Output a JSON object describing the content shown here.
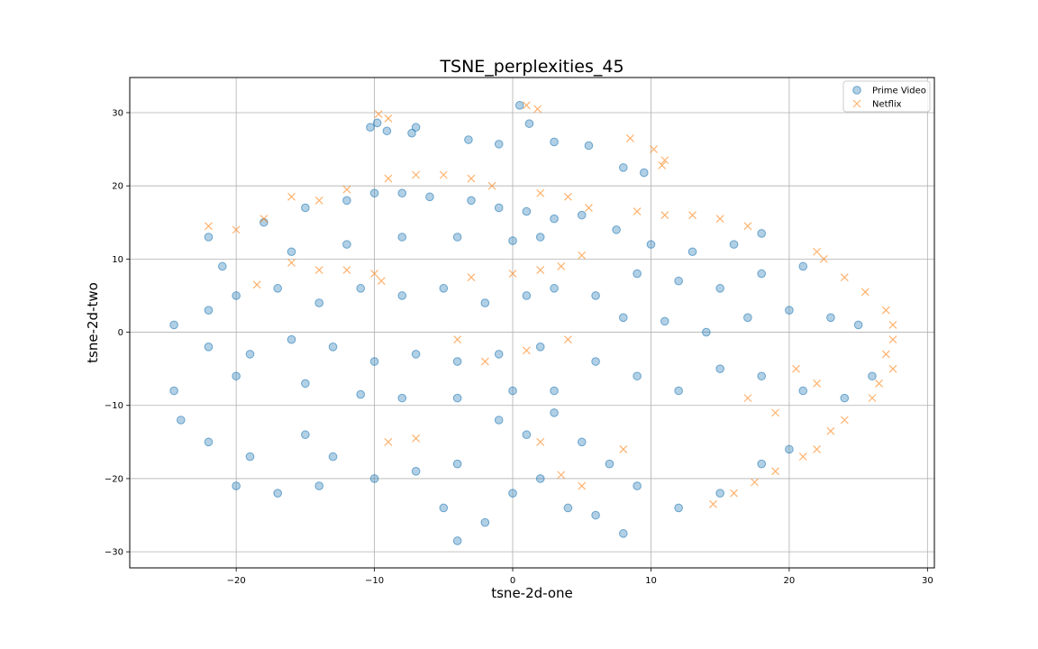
{
  "chart_data": {
    "type": "scatter",
    "title": "TSNE_perplexities_45",
    "xlabel": "tsne-2d-one",
    "ylabel": "tsne-2d-two",
    "xlim": [
      -27.7,
      30.5
    ],
    "ylim": [
      -32.2,
      34.8
    ],
    "xticks": [
      -20,
      -10,
      0,
      10,
      20,
      30
    ],
    "yticks": [
      -30,
      -20,
      -10,
      0,
      10,
      20,
      30
    ],
    "grid": true,
    "legend_position": "top-right",
    "series": [
      {
        "name": "Prime Video",
        "marker": "circle",
        "color": "#1f77b4",
        "alpha": 0.35,
        "points": [
          [
            -10.3,
            28.0
          ],
          [
            -9.8,
            28.6
          ],
          [
            -9.1,
            27.5
          ],
          [
            -7.3,
            27.2
          ],
          [
            -7.0,
            28.0
          ],
          [
            -3.2,
            26.3
          ],
          [
            -1.0,
            25.7
          ],
          [
            0.5,
            31.0
          ],
          [
            1.2,
            28.5
          ],
          [
            3.0,
            26.0
          ],
          [
            5.5,
            25.5
          ],
          [
            8.0,
            22.5
          ],
          [
            9.5,
            21.8
          ],
          [
            -22.0,
            13.0
          ],
          [
            -18.0,
            15.0
          ],
          [
            -15.0,
            17.0
          ],
          [
            -12.0,
            18.0
          ],
          [
            -10.0,
            19.0
          ],
          [
            -8.0,
            19.0
          ],
          [
            -6.0,
            18.5
          ],
          [
            -3.0,
            18.0
          ],
          [
            -1.0,
            17.0
          ],
          [
            1.0,
            16.5
          ],
          [
            3.0,
            15.5
          ],
          [
            5.0,
            16.0
          ],
          [
            -21.0,
            9.0
          ],
          [
            -16.0,
            11.0
          ],
          [
            -12.0,
            12.0
          ],
          [
            -8.0,
            13.0
          ],
          [
            -4.0,
            13.0
          ],
          [
            0.0,
            12.5
          ],
          [
            2.0,
            13.0
          ],
          [
            -24.5,
            1.0
          ],
          [
            -22.0,
            3.0
          ],
          [
            -20.0,
            5.0
          ],
          [
            -17.0,
            6.0
          ],
          [
            -14.0,
            4.0
          ],
          [
            -11.0,
            6.0
          ],
          [
            -8.0,
            5.0
          ],
          [
            -5.0,
            6.0
          ],
          [
            -2.0,
            4.0
          ],
          [
            1.0,
            5.0
          ],
          [
            3.0,
            6.0
          ],
          [
            6.0,
            5.0
          ],
          [
            -22.0,
            -2.0
          ],
          [
            -19.0,
            -3.0
          ],
          [
            -16.0,
            -1.0
          ],
          [
            -13.0,
            -2.0
          ],
          [
            -10.0,
            -4.0
          ],
          [
            -7.0,
            -3.0
          ],
          [
            -4.0,
            -4.0
          ],
          [
            -1.0,
            -3.0
          ],
          [
            2.0,
            -2.0
          ],
          [
            -20.0,
            -6.0
          ],
          [
            -15.0,
            -7.0
          ],
          [
            -11.0,
            -8.5
          ],
          [
            -8.0,
            -9.0
          ],
          [
            -4.0,
            -9.0
          ],
          [
            0.0,
            -8.0
          ],
          [
            3.0,
            -8.0
          ],
          [
            7.5,
            14.0
          ],
          [
            10.0,
            12.0
          ],
          [
            13.0,
            11.0
          ],
          [
            16.0,
            12.0
          ],
          [
            18.0,
            13.5
          ],
          [
            9.0,
            8.0
          ],
          [
            12.0,
            7.0
          ],
          [
            15.0,
            6.0
          ],
          [
            18.0,
            8.0
          ],
          [
            21.0,
            9.0
          ],
          [
            8.0,
            2.0
          ],
          [
            11.0,
            1.5
          ],
          [
            14.0,
            0.0
          ],
          [
            17.0,
            2.0
          ],
          [
            20.0,
            3.0
          ],
          [
            23.0,
            2.0
          ],
          [
            25.0,
            1.0
          ],
          [
            6.0,
            -4.0
          ],
          [
            9.0,
            -6.0
          ],
          [
            12.0,
            -8.0
          ],
          [
            15.0,
            -5.0
          ],
          [
            18.0,
            -6.0
          ],
          [
            21.0,
            -8.0
          ],
          [
            24.0,
            -9.0
          ],
          [
            26.0,
            -6.0
          ],
          [
            -24.5,
            -8.0
          ],
          [
            -24.0,
            -12.0
          ],
          [
            -22.0,
            -15.0
          ],
          [
            -19.0,
            -17.0
          ],
          [
            -15.0,
            -14.0
          ],
          [
            -13.0,
            -17.0
          ],
          [
            -20.0,
            -21.0
          ],
          [
            -17.0,
            -22.0
          ],
          [
            -14.0,
            -21.0
          ],
          [
            -10.0,
            -20.0
          ],
          [
            -7.0,
            -19.0
          ],
          [
            -4.0,
            -18.0
          ],
          [
            -5.0,
            -24.0
          ],
          [
            -4.0,
            -28.5
          ],
          [
            -2.0,
            -26.0
          ],
          [
            0.0,
            -22.0
          ],
          [
            2.0,
            -20.0
          ],
          [
            4.0,
            -24.0
          ],
          [
            6.0,
            -25.0
          ],
          [
            8.0,
            -27.5
          ],
          [
            -1.0,
            -12.0
          ],
          [
            1.0,
            -14.0
          ],
          [
            3.0,
            -11.0
          ],
          [
            5.0,
            -15.0
          ],
          [
            7.0,
            -18.0
          ],
          [
            9.0,
            -21.0
          ],
          [
            12.0,
            -24.0
          ],
          [
            15.0,
            -22.0
          ],
          [
            18.0,
            -18.0
          ],
          [
            20.0,
            -16.0
          ]
        ]
      },
      {
        "name": "Netflix",
        "marker": "x",
        "color": "#ff7f0e",
        "alpha": 0.4,
        "points": [
          [
            -9.7,
            29.8
          ],
          [
            -9.0,
            29.2
          ],
          [
            1.0,
            31.0
          ],
          [
            1.8,
            30.5
          ],
          [
            8.5,
            26.5
          ],
          [
            10.2,
            25.0
          ],
          [
            11.0,
            23.5
          ],
          [
            10.8,
            22.8
          ],
          [
            -22.0,
            14.5
          ],
          [
            -20.0,
            14.0
          ],
          [
            -18.0,
            15.5
          ],
          [
            -16.0,
            18.5
          ],
          [
            -14.0,
            18.0
          ],
          [
            -12.0,
            19.5
          ],
          [
            -9.0,
            21.0
          ],
          [
            -7.0,
            21.5
          ],
          [
            -5.0,
            21.5
          ],
          [
            -3.0,
            21.0
          ],
          [
            -1.5,
            20.0
          ],
          [
            2.0,
            19.0
          ],
          [
            4.0,
            18.5
          ],
          [
            5.5,
            17.0
          ],
          [
            -18.5,
            6.5
          ],
          [
            -16.0,
            9.5
          ],
          [
            -14.0,
            8.5
          ],
          [
            -12.0,
            8.5
          ],
          [
            -10.0,
            8.0
          ],
          [
            -9.5,
            7.0
          ],
          [
            -3.0,
            7.5
          ],
          [
            0.0,
            8.0
          ],
          [
            2.0,
            8.5
          ],
          [
            3.5,
            9.0
          ],
          [
            5.0,
            10.5
          ],
          [
            9.0,
            16.5
          ],
          [
            11.0,
            16.0
          ],
          [
            13.0,
            16.0
          ],
          [
            15.0,
            15.5
          ],
          [
            17.0,
            14.5
          ],
          [
            22.0,
            11.0
          ],
          [
            22.5,
            10.0
          ],
          [
            24.0,
            7.5
          ],
          [
            25.5,
            5.5
          ],
          [
            27.0,
            3.0
          ],
          [
            27.5,
            1.0
          ],
          [
            27.5,
            -1.0
          ],
          [
            27.0,
            -3.0
          ],
          [
            27.5,
            -5.0
          ],
          [
            26.5,
            -7.0
          ],
          [
            26.0,
            -9.0
          ],
          [
            24.0,
            -12.0
          ],
          [
            23.0,
            -13.5
          ],
          [
            22.0,
            -16.0
          ],
          [
            21.0,
            -17.0
          ],
          [
            19.0,
            -19.0
          ],
          [
            17.5,
            -20.5
          ],
          [
            16.0,
            -22.0
          ],
          [
            14.5,
            -23.5
          ],
          [
            -7.0,
            -14.5
          ],
          [
            -9.0,
            -15.0
          ],
          [
            2.0,
            -15.0
          ],
          [
            3.5,
            -19.5
          ],
          [
            5.0,
            -21.0
          ],
          [
            8.0,
            -16.0
          ],
          [
            -4.0,
            -1.0
          ],
          [
            -2.0,
            -4.0
          ],
          [
            4.0,
            -1.0
          ],
          [
            1.0,
            -2.5
          ],
          [
            17.0,
            -9.0
          ],
          [
            19.0,
            -11.0
          ],
          [
            22.0,
            -7.0
          ],
          [
            20.5,
            -5.0
          ]
        ]
      }
    ]
  }
}
